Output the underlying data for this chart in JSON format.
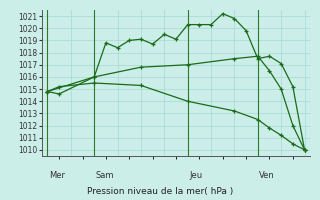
{
  "background_color": "#cceee8",
  "line_color": "#1a6b1a",
  "grid_color": "#a8d8d0",
  "xlabel": "Pression niveau de la mer( hPa )",
  "ylim": [
    1009.5,
    1021.5
  ],
  "yticks": [
    1010,
    1011,
    1012,
    1013,
    1014,
    1015,
    1016,
    1017,
    1018,
    1019,
    1020,
    1021
  ],
  "xlim": [
    -0.5,
    22.5
  ],
  "day_labels": [
    "Mer",
    "Sam",
    "Jeu",
    "Ven"
  ],
  "day_positions": [
    0,
    4,
    12,
    18
  ],
  "line1_x": [
    0,
    1,
    4,
    5,
    6,
    7,
    8,
    9,
    10,
    11,
    12,
    13,
    14,
    15,
    16,
    17,
    18,
    19,
    20,
    21,
    22
  ],
  "line1_y": [
    1014.8,
    1014.6,
    1016.0,
    1018.8,
    1018.4,
    1019.0,
    1019.1,
    1018.7,
    1019.5,
    1019.1,
    1020.3,
    1020.3,
    1020.3,
    1021.2,
    1020.8,
    1019.8,
    1017.5,
    1017.7,
    1017.1,
    1015.2,
    1010.0
  ],
  "line2_x": [
    0,
    4,
    8,
    12,
    16,
    18,
    19,
    20,
    21,
    22
  ],
  "line2_y": [
    1014.8,
    1016.0,
    1016.8,
    1017.0,
    1017.5,
    1017.7,
    1016.5,
    1015.0,
    1012.0,
    1010.0
  ],
  "line3_x": [
    0,
    1,
    4,
    8,
    12,
    16,
    18,
    19,
    20,
    21,
    22
  ],
  "line3_y": [
    1014.8,
    1015.2,
    1015.5,
    1015.3,
    1014.0,
    1013.2,
    1012.5,
    1011.8,
    1011.2,
    1010.5,
    1010.0
  ]
}
